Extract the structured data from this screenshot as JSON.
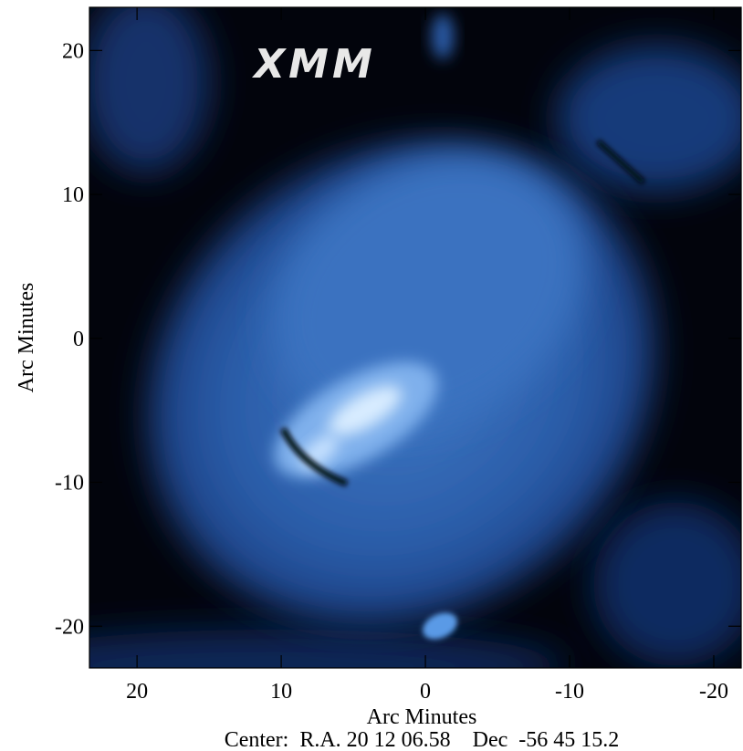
{
  "chart_data": {
    "type": "image",
    "annotation": "XMM",
    "xlabel": "Arc Minutes",
    "ylabel": "Arc Minutes",
    "caption": "Center:  R.A. 20 12 06.58    Dec  -56 45 15.2",
    "xlim": [
      23.3,
      -21.9
    ],
    "ylim": [
      -22.9,
      23
    ],
    "xticks": [
      20,
      10,
      0,
      -10,
      -20
    ],
    "yticks": [
      -20,
      -10,
      0,
      10,
      20
    ]
  }
}
